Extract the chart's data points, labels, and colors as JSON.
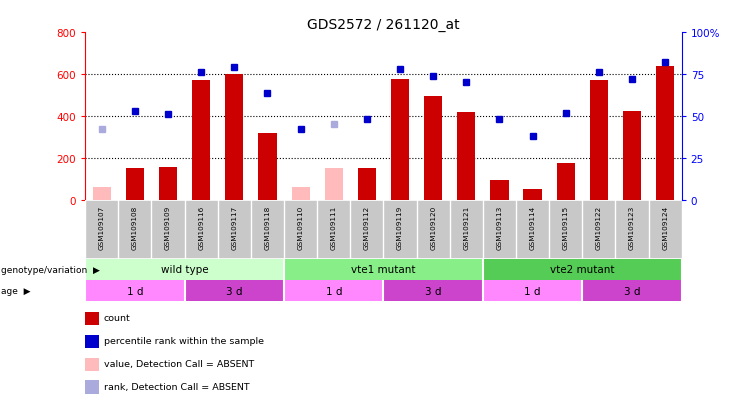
{
  "title": "GDS2572 / 261120_at",
  "samples": [
    "GSM109107",
    "GSM109108",
    "GSM109109",
    "GSM109116",
    "GSM109117",
    "GSM109118",
    "GSM109110",
    "GSM109111",
    "GSM109112",
    "GSM109119",
    "GSM109120",
    "GSM109121",
    "GSM109113",
    "GSM109114",
    "GSM109115",
    "GSM109122",
    "GSM109123",
    "GSM109124"
  ],
  "count_values": [
    60,
    150,
    155,
    570,
    600,
    320,
    60,
    150,
    150,
    575,
    495,
    420,
    95,
    50,
    175,
    570,
    425,
    640
  ],
  "count_absent": [
    true,
    false,
    false,
    false,
    false,
    false,
    true,
    true,
    false,
    false,
    false,
    false,
    false,
    false,
    false,
    false,
    false,
    false
  ],
  "rank_values": [
    42,
    53,
    51,
    76,
    79,
    64,
    42,
    45,
    48,
    78,
    74,
    70,
    48,
    38,
    52,
    76,
    72,
    82
  ],
  "rank_absent": [
    true,
    false,
    false,
    false,
    false,
    false,
    false,
    true,
    false,
    false,
    false,
    false,
    false,
    false,
    false,
    false,
    false,
    false
  ],
  "ylim_left": [
    0,
    800
  ],
  "ylim_right": [
    0,
    100
  ],
  "yticks_left": [
    0,
    200,
    400,
    600,
    800
  ],
  "yticks_right": [
    0,
    25,
    50,
    75,
    100
  ],
  "ytick_labels_left": [
    "0",
    "200",
    "400",
    "600",
    "800"
  ],
  "ytick_labels_right": [
    "0",
    "25",
    "50",
    "75",
    "100%"
  ],
  "bar_color_present": "#cc0000",
  "bar_color_absent": "#ffbbbb",
  "rank_color_present": "#0000cc",
  "rank_color_absent": "#aaaadd",
  "genotype_groups": [
    {
      "label": "wild type",
      "start": 0,
      "end": 6,
      "color": "#ccffcc"
    },
    {
      "label": "vte1 mutant",
      "start": 6,
      "end": 12,
      "color": "#88ee88"
    },
    {
      "label": "vte2 mutant",
      "start": 12,
      "end": 18,
      "color": "#55cc55"
    }
  ],
  "age_groups": [
    {
      "label": "1 d",
      "start": 0,
      "end": 3,
      "color": "#ff88ff"
    },
    {
      "label": "3 d",
      "start": 3,
      "end": 6,
      "color": "#cc44cc"
    },
    {
      "label": "1 d",
      "start": 6,
      "end": 9,
      "color": "#ff88ff"
    },
    {
      "label": "3 d",
      "start": 9,
      "end": 12,
      "color": "#cc44cc"
    },
    {
      "label": "1 d",
      "start": 12,
      "end": 15,
      "color": "#ff88ff"
    },
    {
      "label": "3 d",
      "start": 15,
      "end": 18,
      "color": "#cc44cc"
    }
  ],
  "legend_items": [
    {
      "label": "count",
      "color": "#cc0000"
    },
    {
      "label": "percentile rank within the sample",
      "color": "#0000cc"
    },
    {
      "label": "value, Detection Call = ABSENT",
      "color": "#ffbbbb"
    },
    {
      "label": "rank, Detection Call = ABSENT",
      "color": "#aaaadd"
    }
  ],
  "genotype_label": "genotype/variation",
  "age_label": "age",
  "bar_width": 0.55,
  "marker_size": 5
}
